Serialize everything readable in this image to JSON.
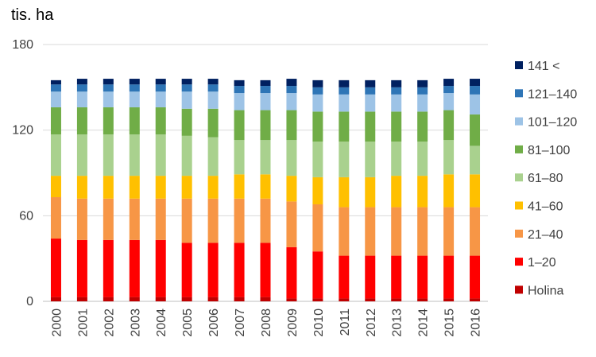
{
  "chart_data": {
    "type": "bar",
    "stacked": true,
    "unit_label": "tis. ha",
    "categories": [
      "2000",
      "2001",
      "2002",
      "2003",
      "2004",
      "2005",
      "2006",
      "2007",
      "2008",
      "2009",
      "2010",
      "2011",
      "2012",
      "2013",
      "2014",
      "2015",
      "2016"
    ],
    "ylim": [
      0,
      180
    ],
    "yticks": [
      0,
      60,
      120,
      180
    ],
    "grid": true,
    "legend_position": "right",
    "series": [
      {
        "name": "Holina",
        "color": "#c00000",
        "values": [
          3,
          3,
          3,
          3,
          3,
          3,
          3,
          3,
          3,
          2,
          2,
          2,
          2,
          2,
          2,
          2,
          2
        ]
      },
      {
        "name": "1–20",
        "color": "#ff0000",
        "values": [
          41,
          40,
          40,
          40,
          40,
          38,
          38,
          38,
          38,
          36,
          33,
          30,
          30,
          30,
          30,
          30,
          30
        ]
      },
      {
        "name": "21–40",
        "color": "#f79646",
        "values": [
          29,
          29,
          29,
          29,
          29,
          31,
          31,
          31,
          31,
          32,
          33,
          34,
          34,
          34,
          34,
          34,
          34
        ]
      },
      {
        "name": "41–60",
        "color": "#ffc000",
        "values": [
          15,
          16,
          16,
          16,
          16,
          16,
          16,
          17,
          17,
          18,
          19,
          21,
          21,
          22,
          22,
          23,
          23
        ]
      },
      {
        "name": "61–80",
        "color": "#a9d18e",
        "values": [
          29,
          29,
          29,
          29,
          29,
          28,
          27,
          24,
          24,
          25,
          25,
          25,
          25,
          24,
          24,
          24,
          20
        ]
      },
      {
        "name": "81–100",
        "color": "#70ad47",
        "values": [
          19,
          19,
          19,
          19,
          19,
          19,
          20,
          21,
          21,
          21,
          21,
          21,
          21,
          21,
          21,
          21,
          22
        ]
      },
      {
        "name": "101–120",
        "color": "#9dc3e6",
        "values": [
          11,
          11,
          11,
          11,
          11,
          12,
          12,
          12,
          12,
          12,
          12,
          12,
          12,
          12,
          12,
          12,
          14
        ]
      },
      {
        "name": "121–140",
        "color": "#2e75b6",
        "values": [
          5,
          5,
          5,
          5,
          5,
          5,
          5,
          5,
          5,
          5,
          5,
          5,
          5,
          5,
          5,
          5,
          6
        ]
      },
      {
        "name": "141 <",
        "color": "#002060",
        "values": [
          3,
          4,
          4,
          4,
          4,
          4,
          4,
          4,
          4,
          5,
          5,
          5,
          5,
          5,
          5,
          5,
          5
        ]
      }
    ]
  }
}
